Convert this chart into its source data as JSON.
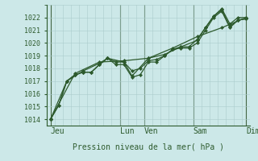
{
  "title": "Pression niveau de la mer( hPa )",
  "bg_color": "#cce8e8",
  "grid_color": "#aacccc",
  "line_color": "#2d5a2d",
  "vline_color": "#446644",
  "ylim": [
    1013.5,
    1023.0
  ],
  "yticks": [
    1014,
    1015,
    1016,
    1017,
    1018,
    1019,
    1020,
    1021,
    1022
  ],
  "xlim": [
    0,
    25
  ],
  "day_labels": [
    "Jeu",
    "Lun",
    "Ven",
    "Sam",
    "Dim"
  ],
  "day_positions": [
    0.5,
    9,
    12,
    18,
    24.5
  ],
  "vline_positions": [
    0.5,
    9,
    12,
    18,
    24.5
  ],
  "series1_x": [
    0.5,
    1.5,
    2.5,
    3.5,
    4.5,
    5.5,
    6.5,
    7.5,
    8.5,
    9.5,
    10.5,
    11.5,
    12.5,
    13.5,
    14.5,
    15.5,
    16.5,
    17.5,
    18.5,
    19.5,
    20.5,
    21.5,
    22.5,
    23.5,
    24.5
  ],
  "series1_y": [
    1014.0,
    1015.1,
    1017.0,
    1017.5,
    1017.7,
    1017.7,
    1018.3,
    1018.8,
    1018.3,
    1018.3,
    1017.3,
    1017.5,
    1018.5,
    1018.5,
    1019.0,
    1019.5,
    1019.6,
    1019.6,
    1020.0,
    1021.0,
    1022.0,
    1022.5,
    1021.2,
    1021.8,
    1021.9
  ],
  "series2_x": [
    0.5,
    1.5,
    2.5,
    3.5,
    4.5,
    5.5,
    6.5,
    7.5,
    8.5,
    9.5,
    10.5,
    11.5,
    12.5,
    13.5,
    14.5,
    15.5,
    16.5,
    17.5,
    18.5,
    19.5,
    20.5,
    21.5,
    22.5,
    23.5,
    24.5
  ],
  "series2_y": [
    1014.0,
    1015.1,
    1017.0,
    1017.5,
    1017.7,
    1017.7,
    1018.3,
    1018.8,
    1018.5,
    1018.5,
    1017.8,
    1018.0,
    1018.6,
    1018.7,
    1019.0,
    1019.5,
    1019.7,
    1019.7,
    1020.3,
    1021.2,
    1022.1,
    1022.6,
    1021.3,
    1021.8,
    1021.9
  ],
  "series3_x": [
    0.5,
    2.5,
    4.5,
    6.5,
    7.5,
    9.5,
    10.5,
    12.5,
    14.5,
    16.5,
    18.5,
    19.5,
    20.5,
    21.5,
    22.5,
    23.5,
    24.5
  ],
  "series3_y": [
    1014.0,
    1017.0,
    1017.8,
    1018.4,
    1018.8,
    1018.5,
    1017.4,
    1018.8,
    1019.1,
    1019.7,
    1020.2,
    1021.2,
    1022.1,
    1022.7,
    1021.5,
    1022.0,
    1022.0
  ],
  "series4_x": [
    0.5,
    3.5,
    6.5,
    9.5,
    12.5,
    15.5,
    18.5,
    21.5,
    24.5
  ],
  "series4_y": [
    1014.0,
    1017.6,
    1018.5,
    1018.6,
    1018.8,
    1019.6,
    1020.5,
    1021.2,
    1022.0
  ],
  "tick_fontsize": 6,
  "label_fontsize": 7,
  "linewidth": 0.9,
  "markersize": 2.2
}
